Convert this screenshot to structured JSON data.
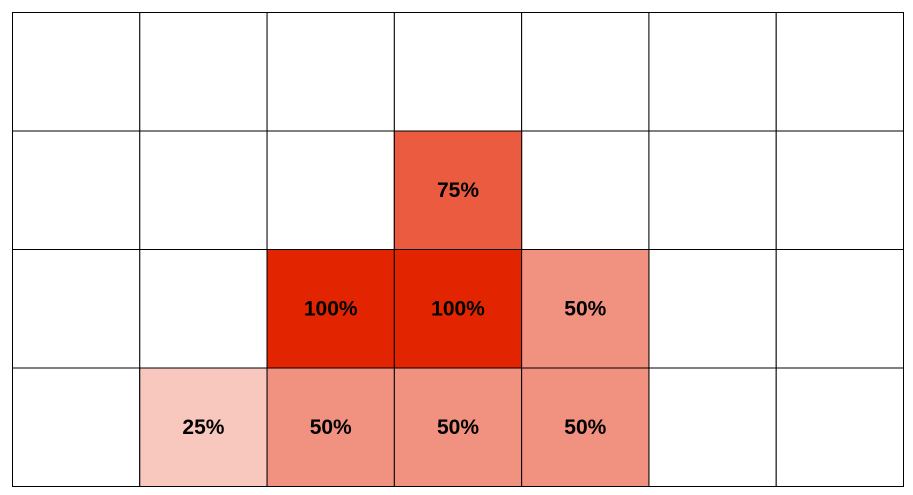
{
  "chart_data": {
    "type": "heatmap",
    "values": [
      [
        null,
        null,
        null,
        null,
        null,
        null,
        null
      ],
      [
        null,
        null,
        null,
        75,
        null,
        null,
        null
      ],
      [
        null,
        null,
        100,
        100,
        50,
        null,
        null
      ],
      [
        null,
        25,
        50,
        50,
        50,
        null,
        null
      ]
    ],
    "value_labels": [
      [
        null,
        null,
        null,
        null,
        null,
        null,
        null
      ],
      [
        null,
        null,
        null,
        "75%",
        null,
        null,
        null
      ],
      [
        null,
        null,
        "100%",
        "100%",
        "50%",
        null,
        null
      ],
      [
        null,
        "25%",
        "50%",
        "50%",
        "50%",
        null,
        null
      ]
    ],
    "color": "#e32400",
    "zlim": [
      0,
      100
    ]
  }
}
